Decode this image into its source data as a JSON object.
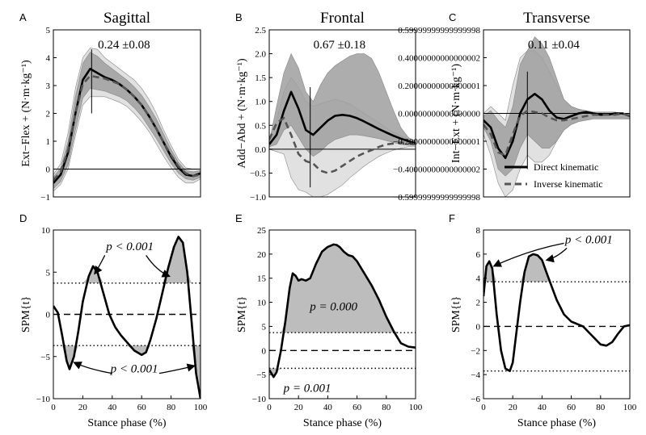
{
  "figure": {
    "columns": [
      {
        "letter": "A",
        "title": "Sagittal"
      },
      {
        "letter": "B",
        "title": "Frontal"
      },
      {
        "letter": "C",
        "title": "Transverse"
      }
    ],
    "bottom_letters": [
      "D",
      "E",
      "F"
    ],
    "legend": {
      "direct": "Direct kinematic",
      "inverse": "Inverse kinematic"
    }
  },
  "chart_data": [
    {
      "type": "line",
      "panel": "A",
      "title": "Sagittal",
      "ylabel": "Ext−Flex + (N·m·kg⁻¹)",
      "xlim": [
        0,
        100
      ],
      "ylim": [
        -1,
        5
      ],
      "yticks": [
        -1,
        0,
        1,
        2,
        3,
        4,
        5
      ],
      "annotation": "0.24 ±0.08",
      "peak_marker": {
        "x": 26,
        "y_range": [
          2.0,
          4.3
        ]
      },
      "x": [
        0,
        5,
        10,
        15,
        20,
        25,
        30,
        35,
        40,
        45,
        50,
        55,
        60,
        65,
        70,
        75,
        80,
        85,
        90,
        95,
        100
      ],
      "series": [
        {
          "name": "Direct kinematic",
          "values": [
            -0.5,
            -0.2,
            0.6,
            2.0,
            3.2,
            3.6,
            3.45,
            3.3,
            3.2,
            3.05,
            2.85,
            2.6,
            2.3,
            1.9,
            1.45,
            0.95,
            0.45,
            0.05,
            -0.2,
            -0.25,
            -0.15
          ]
        },
        {
          "name": "Inverse kinematic",
          "values": [
            -0.4,
            -0.1,
            0.7,
            2.0,
            3.05,
            3.35,
            3.3,
            3.25,
            3.15,
            3.05,
            2.85,
            2.6,
            2.3,
            1.9,
            1.45,
            0.95,
            0.5,
            0.1,
            -0.15,
            -0.25,
            -0.2
          ]
        }
      ],
      "bands": [
        {
          "shade": "light",
          "upper": [
            -0.2,
            0.2,
            1.3,
            2.9,
            4.0,
            4.35,
            4.3,
            4.0,
            3.8,
            3.6,
            3.4,
            3.2,
            2.9,
            2.5,
            2.0,
            1.4,
            0.85,
            0.35,
            0.05,
            0.0,
            0.0
          ],
          "lower": [
            -0.8,
            -0.55,
            0.0,
            1.2,
            2.3,
            2.6,
            2.6,
            2.6,
            2.5,
            2.4,
            2.25,
            2.0,
            1.7,
            1.35,
            0.9,
            0.45,
            0.05,
            -0.3,
            -0.5,
            -0.5,
            -0.35
          ]
        },
        {
          "shade": "dark",
          "upper": [
            -0.3,
            0.05,
            1.0,
            2.6,
            3.8,
            4.2,
            4.05,
            3.8,
            3.6,
            3.4,
            3.2,
            2.95,
            2.65,
            2.25,
            1.8,
            1.25,
            0.7,
            0.25,
            -0.05,
            -0.1,
            -0.05
          ],
          "lower": [
            -0.7,
            -0.45,
            0.15,
            1.4,
            2.55,
            2.9,
            2.85,
            2.8,
            2.7,
            2.6,
            2.45,
            2.2,
            1.9,
            1.5,
            1.1,
            0.65,
            0.2,
            -0.15,
            -0.35,
            -0.4,
            -0.3
          ]
        }
      ]
    },
    {
      "type": "line",
      "panel": "B",
      "title": "Frontal",
      "ylabel": "Add−Abd + (N·m·kg⁻¹)",
      "xlim": [
        0,
        100
      ],
      "ylim": [
        -1.0,
        2.5
      ],
      "yticks": [
        -1.0,
        -0.5,
        0.0,
        0.5,
        1.0,
        1.5,
        2.0,
        2.5
      ],
      "annotation": "0.67 ±0.18",
      "peak_marker": {
        "x": 28,
        "y_range": [
          -0.8,
          1.3
        ]
      },
      "x": [
        0,
        5,
        10,
        15,
        20,
        25,
        30,
        35,
        40,
        45,
        50,
        55,
        60,
        65,
        70,
        75,
        80,
        85,
        90,
        95,
        100
      ],
      "series": [
        {
          "name": "Direct kinematic",
          "values": [
            0.1,
            0.3,
            0.8,
            1.2,
            0.85,
            0.4,
            0.3,
            0.45,
            0.6,
            0.7,
            0.72,
            0.7,
            0.65,
            0.58,
            0.5,
            0.42,
            0.35,
            0.28,
            0.22,
            0.17,
            0.12
          ]
        },
        {
          "name": "Inverse kinematic",
          "values": [
            0.2,
            0.55,
            0.65,
            0.3,
            -0.1,
            -0.25,
            -0.3,
            -0.45,
            -0.5,
            -0.45,
            -0.35,
            -0.25,
            -0.15,
            -0.08,
            -0.02,
            0.05,
            0.1,
            0.12,
            0.14,
            0.13,
            0.1
          ]
        }
      ],
      "bands": [
        {
          "shade": "light",
          "upper": [
            0.2,
            0.6,
            1.2,
            1.5,
            1.3,
            1.0,
            0.9,
            0.95,
            1.0,
            1.05,
            1.0,
            0.95,
            0.85,
            0.75,
            0.65,
            0.55,
            0.45,
            0.35,
            0.28,
            0.22,
            0.18
          ],
          "lower": [
            0.0,
            -0.05,
            -0.1,
            -0.6,
            -0.85,
            -0.9,
            -1.0,
            -1.0,
            -0.95,
            -0.85,
            -0.75,
            -0.6,
            -0.48,
            -0.35,
            -0.25,
            -0.15,
            -0.08,
            -0.02,
            0.02,
            0.05,
            0.05
          ]
        },
        {
          "shade": "dark",
          "upper": [
            0.15,
            0.9,
            1.6,
            2.0,
            1.7,
            1.2,
            1.0,
            1.35,
            1.6,
            1.75,
            1.85,
            1.95,
            2.0,
            2.0,
            1.9,
            1.6,
            1.2,
            0.8,
            0.45,
            0.25,
            0.15
          ],
          "lower": [
            0.05,
            0.1,
            0.4,
            0.5,
            0.25,
            0.0,
            -0.15,
            -0.05,
            0.1,
            0.2,
            0.25,
            0.3,
            0.3,
            0.28,
            0.25,
            0.22,
            0.18,
            0.14,
            0.1,
            0.08,
            0.08
          ]
        }
      ]
    },
    {
      "type": "line",
      "panel": "C",
      "title": "Transverse",
      "ylabel": "Int−Ext + (N·m·kg⁻¹)",
      "xlim": [
        0,
        100
      ],
      "ylim": [
        -0.6,
        0.6
      ],
      "yticks": [
        -0.6,
        -0.4,
        -0.2,
        0.0,
        0.2,
        0.4,
        0.6
      ],
      "annotation": "0.11 ±0.04",
      "peak_marker": {
        "x": 30,
        "y_range": [
          -0.4,
          0.3
        ]
      },
      "x": [
        0,
        5,
        10,
        15,
        20,
        25,
        30,
        35,
        40,
        45,
        50,
        55,
        60,
        65,
        70,
        75,
        80,
        85,
        90,
        95,
        100
      ],
      "series": [
        {
          "name": "Direct kinematic",
          "values": [
            -0.05,
            -0.1,
            -0.25,
            -0.32,
            -0.2,
            0.0,
            0.1,
            0.14,
            0.1,
            0.02,
            -0.03,
            -0.04,
            -0.02,
            0.0,
            0.01,
            0.0,
            -0.01,
            -0.01,
            0.0,
            0.0,
            -0.02
          ]
        },
        {
          "name": "Inverse kinematic",
          "values": [
            -0.08,
            -0.15,
            -0.28,
            -0.3,
            -0.15,
            -0.02,
            0.02,
            0.01,
            0.0,
            -0.03,
            -0.05,
            -0.05,
            -0.04,
            -0.03,
            -0.02,
            -0.01,
            -0.01,
            -0.01,
            -0.01,
            0.0,
            -0.02
          ]
        }
      ],
      "bands": [
        {
          "shade": "light",
          "upper": [
            0.0,
            0.05,
            0.0,
            -0.05,
            0.2,
            0.4,
            0.45,
            0.45,
            0.4,
            0.3,
            0.2,
            0.1,
            0.05,
            0.03,
            0.02,
            0.01,
            0.0,
            0.0,
            0.0,
            0.0,
            0.0
          ],
          "lower": [
            -0.15,
            -0.3,
            -0.5,
            -0.6,
            -0.55,
            -0.4,
            -0.3,
            -0.35,
            -0.35,
            -0.3,
            -0.2,
            -0.12,
            -0.08,
            -0.05,
            -0.04,
            -0.03,
            -0.03,
            -0.03,
            -0.03,
            -0.03,
            -0.04
          ]
        },
        {
          "shade": "dark",
          "upper": [
            -0.02,
            0.02,
            -0.05,
            -0.1,
            0.05,
            0.35,
            0.45,
            0.55,
            0.5,
            0.4,
            0.25,
            0.1,
            0.05,
            0.03,
            0.02,
            0.01,
            0.01,
            0.01,
            0.01,
            0.0,
            0.0
          ],
          "lower": [
            -0.1,
            -0.2,
            -0.4,
            -0.45,
            -0.4,
            -0.25,
            -0.15,
            -0.2,
            -0.25,
            -0.25,
            -0.2,
            -0.12,
            -0.08,
            -0.06,
            -0.05,
            -0.04,
            -0.04,
            -0.04,
            -0.04,
            -0.04,
            -0.04
          ]
        }
      ]
    },
    {
      "type": "line",
      "panel": "D",
      "xlabel": "Stance phase (%)",
      "ylabel": "SPM{t}",
      "xlim": [
        0,
        100
      ],
      "ylim": [
        -10,
        10
      ],
      "xticks": [
        0,
        20,
        40,
        60,
        80,
        100
      ],
      "yticks": [
        -10,
        -5,
        0,
        5,
        10
      ],
      "threshold": 3.7,
      "annotations": [
        "p < 0.001",
        "p < 0.001"
      ],
      "x": [
        0,
        3,
        6,
        9,
        11,
        14,
        17,
        20,
        24,
        27,
        30,
        34,
        38,
        42,
        46,
        50,
        55,
        60,
        63,
        66,
        70,
        74,
        78,
        82,
        85,
        88,
        91,
        94,
        97,
        100
      ],
      "values": [
        1.0,
        0.2,
        -2.5,
        -5.5,
        -6.5,
        -5.0,
        -2.0,
        1.5,
        4.5,
        5.7,
        5.0,
        2.5,
        0.0,
        -1.5,
        -2.5,
        -3.3,
        -4.3,
        -4.8,
        -4.5,
        -3.0,
        -0.5,
        2.5,
        5.5,
        8.0,
        9.2,
        8.5,
        5.0,
        -1.0,
        -7.0,
        -10.0
      ]
    },
    {
      "type": "line",
      "panel": "E",
      "xlabel": "Stance phase (%)",
      "ylabel": "SPM{t}",
      "xlim": [
        0,
        100
      ],
      "ylim": [
        -10,
        25
      ],
      "xticks": [
        0,
        20,
        40,
        60,
        80,
        100
      ],
      "yticks": [
        -10,
        -5,
        0,
        5,
        10,
        15,
        20,
        25
      ],
      "threshold": 3.7,
      "annotations": [
        "p = 0.000",
        "p = 0.001"
      ],
      "x": [
        0,
        3,
        5,
        8,
        11,
        14,
        16,
        18,
        20,
        22,
        25,
        28,
        32,
        36,
        40,
        44,
        46,
        48,
        51,
        54,
        57,
        60,
        65,
        70,
        75,
        80,
        85,
        90,
        95,
        100
      ],
      "values": [
        -4.0,
        -5.5,
        -4.5,
        0.0,
        6.0,
        13.0,
        16.0,
        15.5,
        14.5,
        14.8,
        14.5,
        15.0,
        18.0,
        20.5,
        21.5,
        22.0,
        21.9,
        21.5,
        20.5,
        19.8,
        19.5,
        18.5,
        16.0,
        13.5,
        10.5,
        7.0,
        4.0,
        1.5,
        0.8,
        0.6
      ]
    },
    {
      "type": "line",
      "panel": "F",
      "xlabel": "Stance phase (%)",
      "ylabel": "SPM{t}",
      "xlim": [
        0,
        100
      ],
      "ylim": [
        -6,
        8
      ],
      "xticks": [
        0,
        20,
        40,
        60,
        80,
        100
      ],
      "yticks": [
        -6,
        -4,
        -2,
        0,
        2,
        4,
        6,
        8
      ],
      "threshold": 3.7,
      "annotations": [
        "p < 0.001"
      ],
      "x": [
        0,
        2,
        4,
        6,
        9,
        12,
        15,
        18,
        20,
        22,
        25,
        28,
        31,
        34,
        37,
        40,
        43,
        46,
        50,
        55,
        60,
        64,
        68,
        72,
        76,
        80,
        84,
        88,
        92,
        96,
        100
      ],
      "values": [
        2.5,
        5.0,
        5.4,
        4.8,
        1.0,
        -2.0,
        -3.5,
        -3.7,
        -3.0,
        -1.0,
        2.0,
        4.5,
        5.8,
        6.0,
        5.9,
        5.5,
        4.5,
        3.5,
        2.2,
        1.0,
        0.4,
        0.2,
        0.0,
        -0.5,
        -1.0,
        -1.5,
        -1.6,
        -1.3,
        -0.6,
        0.0,
        0.1
      ]
    }
  ]
}
